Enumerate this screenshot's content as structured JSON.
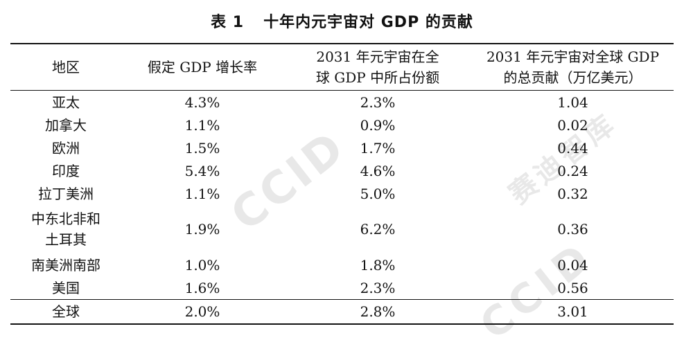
{
  "title": {
    "label": "表 1",
    "text": "十年内元宇宙对 GDP 的贡献"
  },
  "table": {
    "headers": {
      "region": "地区",
      "growth": "假定 GDP 增长率",
      "share_line1": "2031 年元宇宙在全",
      "share_line2": "球 GDP 中所占份额",
      "contrib_line1": "2031 年元宇宙对全球 GDP",
      "contrib_line2": "的总贡献（万亿美元）"
    },
    "rows": [
      {
        "region": "亚太",
        "region2": "",
        "growth": "4.3%",
        "share": "2.3%",
        "contrib": "1.04"
      },
      {
        "region": "加拿大",
        "region2": "",
        "growth": "1.1%",
        "share": "0.9%",
        "contrib": "0.02"
      },
      {
        "region": "欧洲",
        "region2": "",
        "growth": "1.5%",
        "share": "1.7%",
        "contrib": "0.44"
      },
      {
        "region": "印度",
        "region2": "",
        "growth": "5.4%",
        "share": "4.6%",
        "contrib": "0.24"
      },
      {
        "region": "拉丁美洲",
        "region2": "",
        "growth": "1.1%",
        "share": "5.0%",
        "contrib": "0.32"
      },
      {
        "region": "中东北非和",
        "region2": "土耳其",
        "growth": "1.9%",
        "share": "6.2%",
        "contrib": "0.36"
      },
      {
        "region": "南美洲南部",
        "region2": "",
        "growth": "1.0%",
        "share": "1.8%",
        "contrib": "0.04"
      },
      {
        "region": "美国",
        "region2": "",
        "growth": "1.6%",
        "share": "2.3%",
        "contrib": "0.56"
      }
    ],
    "total": {
      "region": "全球",
      "growth": "2.0%",
      "share": "2.8%",
      "contrib": "3.01"
    }
  },
  "watermark": {
    "text_1": "CCID",
    "text_2": "CCID",
    "text_3": "赛迪智库"
  }
}
